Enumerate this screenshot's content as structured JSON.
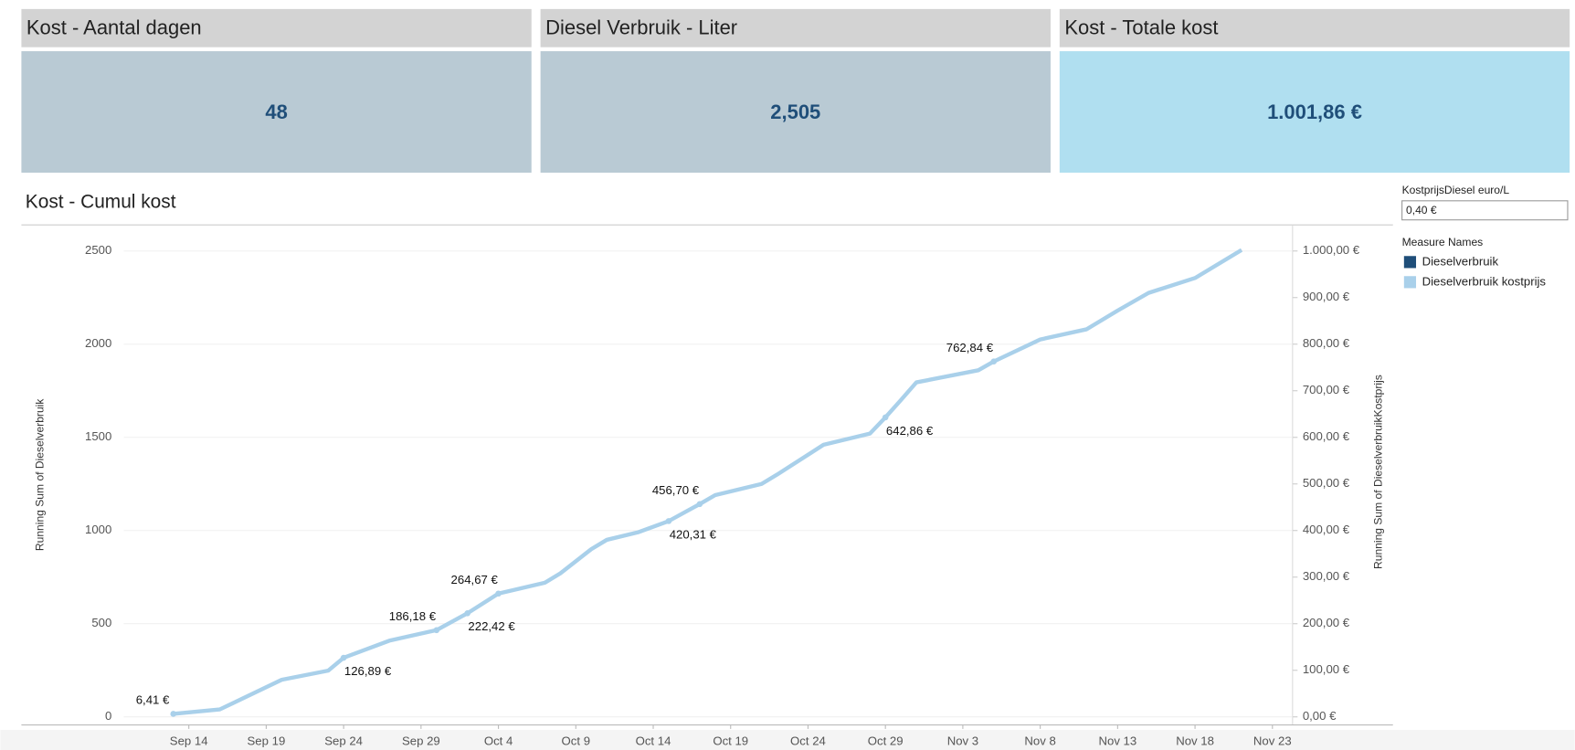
{
  "kpis": [
    {
      "title": "Kost - Aantal dagen",
      "value": "48"
    },
    {
      "title": "Diesel Verbruik - Liter",
      "value": "2,505"
    },
    {
      "title": "Kost - Totale kost",
      "value": "1.001,86 €"
    }
  ],
  "parameter": {
    "label": "KostprijsDiesel euro/L",
    "value": "0,40 €"
  },
  "chart_data": {
    "type": "line",
    "title": "Kost - Cumul kost",
    "ylabel": "Running Sum of Dieselverbruik",
    "y2label": "Running Sum of DieselverbruikKostprijs",
    "legend_title": "Measure Names",
    "x": [
      256,
      259,
      263,
      266,
      267,
      270,
      273,
      275,
      277,
      280,
      281,
      283,
      284,
      286,
      288,
      290,
      291,
      294,
      295,
      298,
      301,
      302,
      303,
      304,
      308,
      309,
      312,
      315,
      317,
      319,
      322,
      325
    ],
    "xlim": [
      252.8,
      328.3
    ],
    "xticks": [
      {
        "value": 257,
        "label": "Sep 14"
      },
      {
        "value": 262,
        "label": "Sep 19"
      },
      {
        "value": 267,
        "label": "Sep 24"
      },
      {
        "value": 272,
        "label": "Sep 29"
      },
      {
        "value": 277,
        "label": "Oct 4"
      },
      {
        "value": 282,
        "label": "Oct 9"
      },
      {
        "value": 287,
        "label": "Oct 14"
      },
      {
        "value": 292,
        "label": "Oct 19"
      },
      {
        "value": 297,
        "label": "Oct 24"
      },
      {
        "value": 302,
        "label": "Oct 29"
      },
      {
        "value": 307,
        "label": "Nov 3"
      },
      {
        "value": 312,
        "label": "Nov 8"
      },
      {
        "value": 317,
        "label": "Nov 13"
      },
      {
        "value": 322,
        "label": "Nov 18"
      },
      {
        "value": 327,
        "label": "Nov 23"
      }
    ],
    "ylim": [
      -43.1,
      2640
    ],
    "yticks": [
      0,
      500,
      1000,
      1500,
      2000,
      2500
    ],
    "y2lim": [
      -17.24,
      1056
    ],
    "y2ticks": [
      {
        "value": 0,
        "label": "0,00 €"
      },
      {
        "value": 100,
        "label": "100,00 €"
      },
      {
        "value": 200,
        "label": "200,00 €"
      },
      {
        "value": 300,
        "label": "300,00 €"
      },
      {
        "value": 400,
        "label": "400,00 €"
      },
      {
        "value": 500,
        "label": "500,00 €"
      },
      {
        "value": 600,
        "label": "600,00 €"
      },
      {
        "value": 700,
        "label": "700,00 €"
      },
      {
        "value": 800,
        "label": "800,00 €"
      },
      {
        "value": 900,
        "label": "900,00 €"
      },
      {
        "value": 1000,
        "label": "1.000,00 €"
      }
    ],
    "grid": true,
    "series": [
      {
        "name": "Dieselverbruik",
        "color": "#1f4e79",
        "values": [
          16.0,
          40,
          199,
          248,
          317.2,
          410,
          465.5,
          556,
          661.7,
          720,
          770,
          900,
          950,
          990,
          1050.8,
          1141.8,
          1190,
          1250,
          1300,
          1460,
          1520,
          1607,
          1700,
          1795,
          1860,
          1907.1,
          2025,
          2080,
          2180,
          2275,
          2355,
          2504.7
        ]
      },
      {
        "name": "Dieselverbruik kostprijs",
        "color": "#a9d0ea",
        "axis": "y2",
        "values": [
          6.41,
          16,
          79.6,
          99.2,
          126.89,
          164,
          186.18,
          222.42,
          264.67,
          288,
          308,
          360,
          380,
          396,
          420.31,
          456.7,
          476,
          500,
          520,
          584,
          608,
          642.86,
          680,
          718,
          744,
          762.84,
          810,
          832,
          872,
          910,
          942,
          1001.86
        ],
        "value_labels": [
          "6,41 €",
          null,
          null,
          null,
          "126,89 €",
          null,
          "186,18 €",
          "222,42 €",
          "264,67 €",
          null,
          null,
          null,
          null,
          null,
          "420,31 €",
          "456,70 €",
          null,
          null,
          null,
          null,
          null,
          "642,86 €",
          null,
          null,
          null,
          "762,84 €",
          null,
          null,
          null,
          null,
          null,
          null
        ]
      }
    ]
  }
}
